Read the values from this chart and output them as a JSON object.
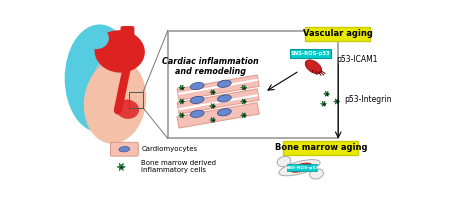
{
  "bg_color": "#ffffff",
  "vascular_aging_label": "Vascular aging",
  "bone_marrow_aging_label": "Bone marrow aging",
  "cardiac_label": "Cardiac inflammation\nand remodeling",
  "p53_icam1_label": "p53-ICAM1",
  "p53_integrin_label": "p53-Integrin",
  "cardiomyocytes_label": "Cardiomyocytes",
  "bone_marrow_cells_label": "Bone marrow derived\ninflammatory cells",
  "sns_ros_label": "SNS-ROS-p53",
  "vascular_label_bg": "#e8e800",
  "bone_label_bg": "#e8e800",
  "cyan_label_bg": "#00cccc",
  "heart_pink": "#f5c0a8",
  "heart_cyan": "#55cce0",
  "heart_red": "#dd2222",
  "fiber_color": "#f5c0b8",
  "fiber_edge": "#e09888",
  "nucleus_color": "#6688cc",
  "star_color": "#229944",
  "star_edge": "#115522",
  "box_edge": "#999999"
}
